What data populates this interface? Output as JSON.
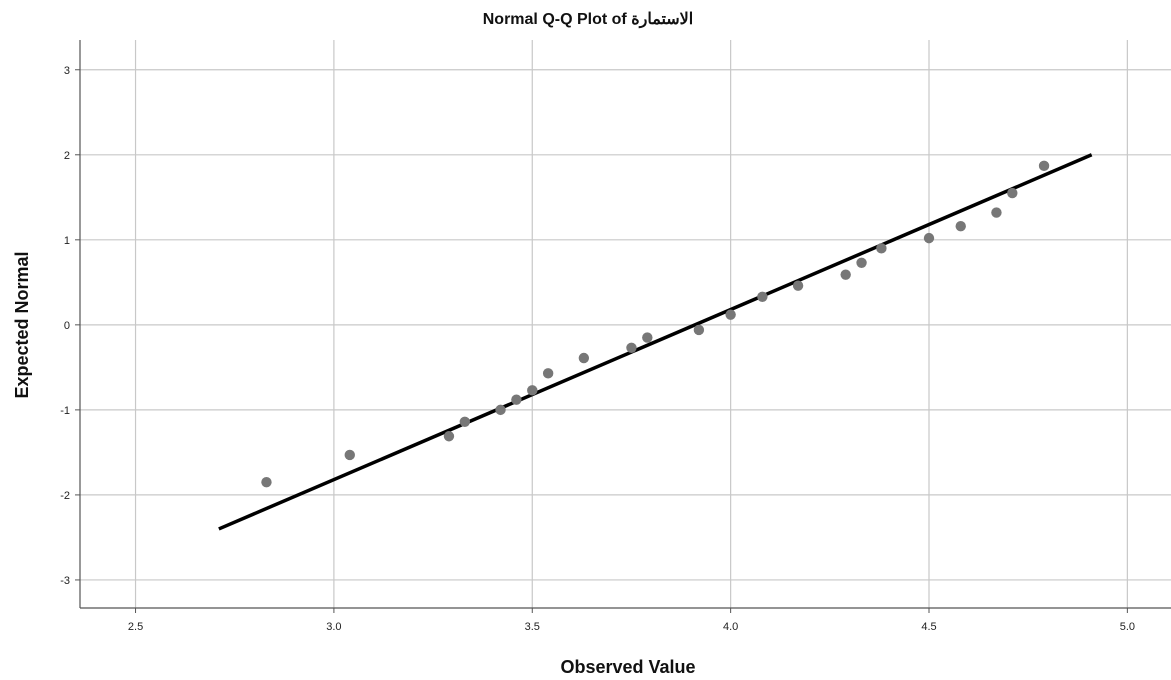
{
  "chart_data": {
    "type": "scatter",
    "title": "Normal Q-Q Plot of الاستمارة",
    "xlabel": "Observed Value",
    "ylabel": "Expected Normal",
    "xlim": [
      2.36,
      5.11
    ],
    "ylim": [
      -3.33,
      3.35
    ],
    "x_ticks": [
      2.5,
      3.0,
      3.5,
      4.0,
      4.5,
      5.0
    ],
    "x_tick_labels": [
      "2.5",
      "3.0",
      "3.5",
      "4.0",
      "4.5",
      "5.0"
    ],
    "y_ticks": [
      3,
      2,
      1,
      0,
      -1,
      -2,
      -3
    ],
    "y_tick_labels": [
      "3",
      "2",
      "1",
      "0",
      "-1",
      "-2",
      "-3"
    ],
    "grid": true,
    "legend": "none",
    "colors": {
      "points": "#777777",
      "line": "#000000",
      "grid": "#c8c8c8",
      "axis": "#555555"
    },
    "points": [
      {
        "x": 2.83,
        "y": -1.85
      },
      {
        "x": 3.04,
        "y": -1.53
      },
      {
        "x": 3.29,
        "y": -1.31
      },
      {
        "x": 3.33,
        "y": -1.14
      },
      {
        "x": 3.42,
        "y": -1.0
      },
      {
        "x": 3.46,
        "y": -0.88
      },
      {
        "x": 3.5,
        "y": -0.77
      },
      {
        "x": 3.54,
        "y": -0.57
      },
      {
        "x": 3.63,
        "y": -0.39
      },
      {
        "x": 3.75,
        "y": -0.27
      },
      {
        "x": 3.79,
        "y": -0.15
      },
      {
        "x": 3.92,
        "y": -0.06
      },
      {
        "x": 4.0,
        "y": 0.12
      },
      {
        "x": 4.08,
        "y": 0.33
      },
      {
        "x": 4.17,
        "y": 0.46
      },
      {
        "x": 4.29,
        "y": 0.59
      },
      {
        "x": 4.33,
        "y": 0.73
      },
      {
        "x": 4.38,
        "y": 0.9
      },
      {
        "x": 4.5,
        "y": 1.02
      },
      {
        "x": 4.58,
        "y": 1.16
      },
      {
        "x": 4.67,
        "y": 1.32
      },
      {
        "x": 4.71,
        "y": 1.55
      },
      {
        "x": 4.79,
        "y": 1.87
      }
    ],
    "reference_line": {
      "x": [
        2.71,
        4.91
      ],
      "y": [
        -2.4,
        2.0
      ]
    }
  }
}
